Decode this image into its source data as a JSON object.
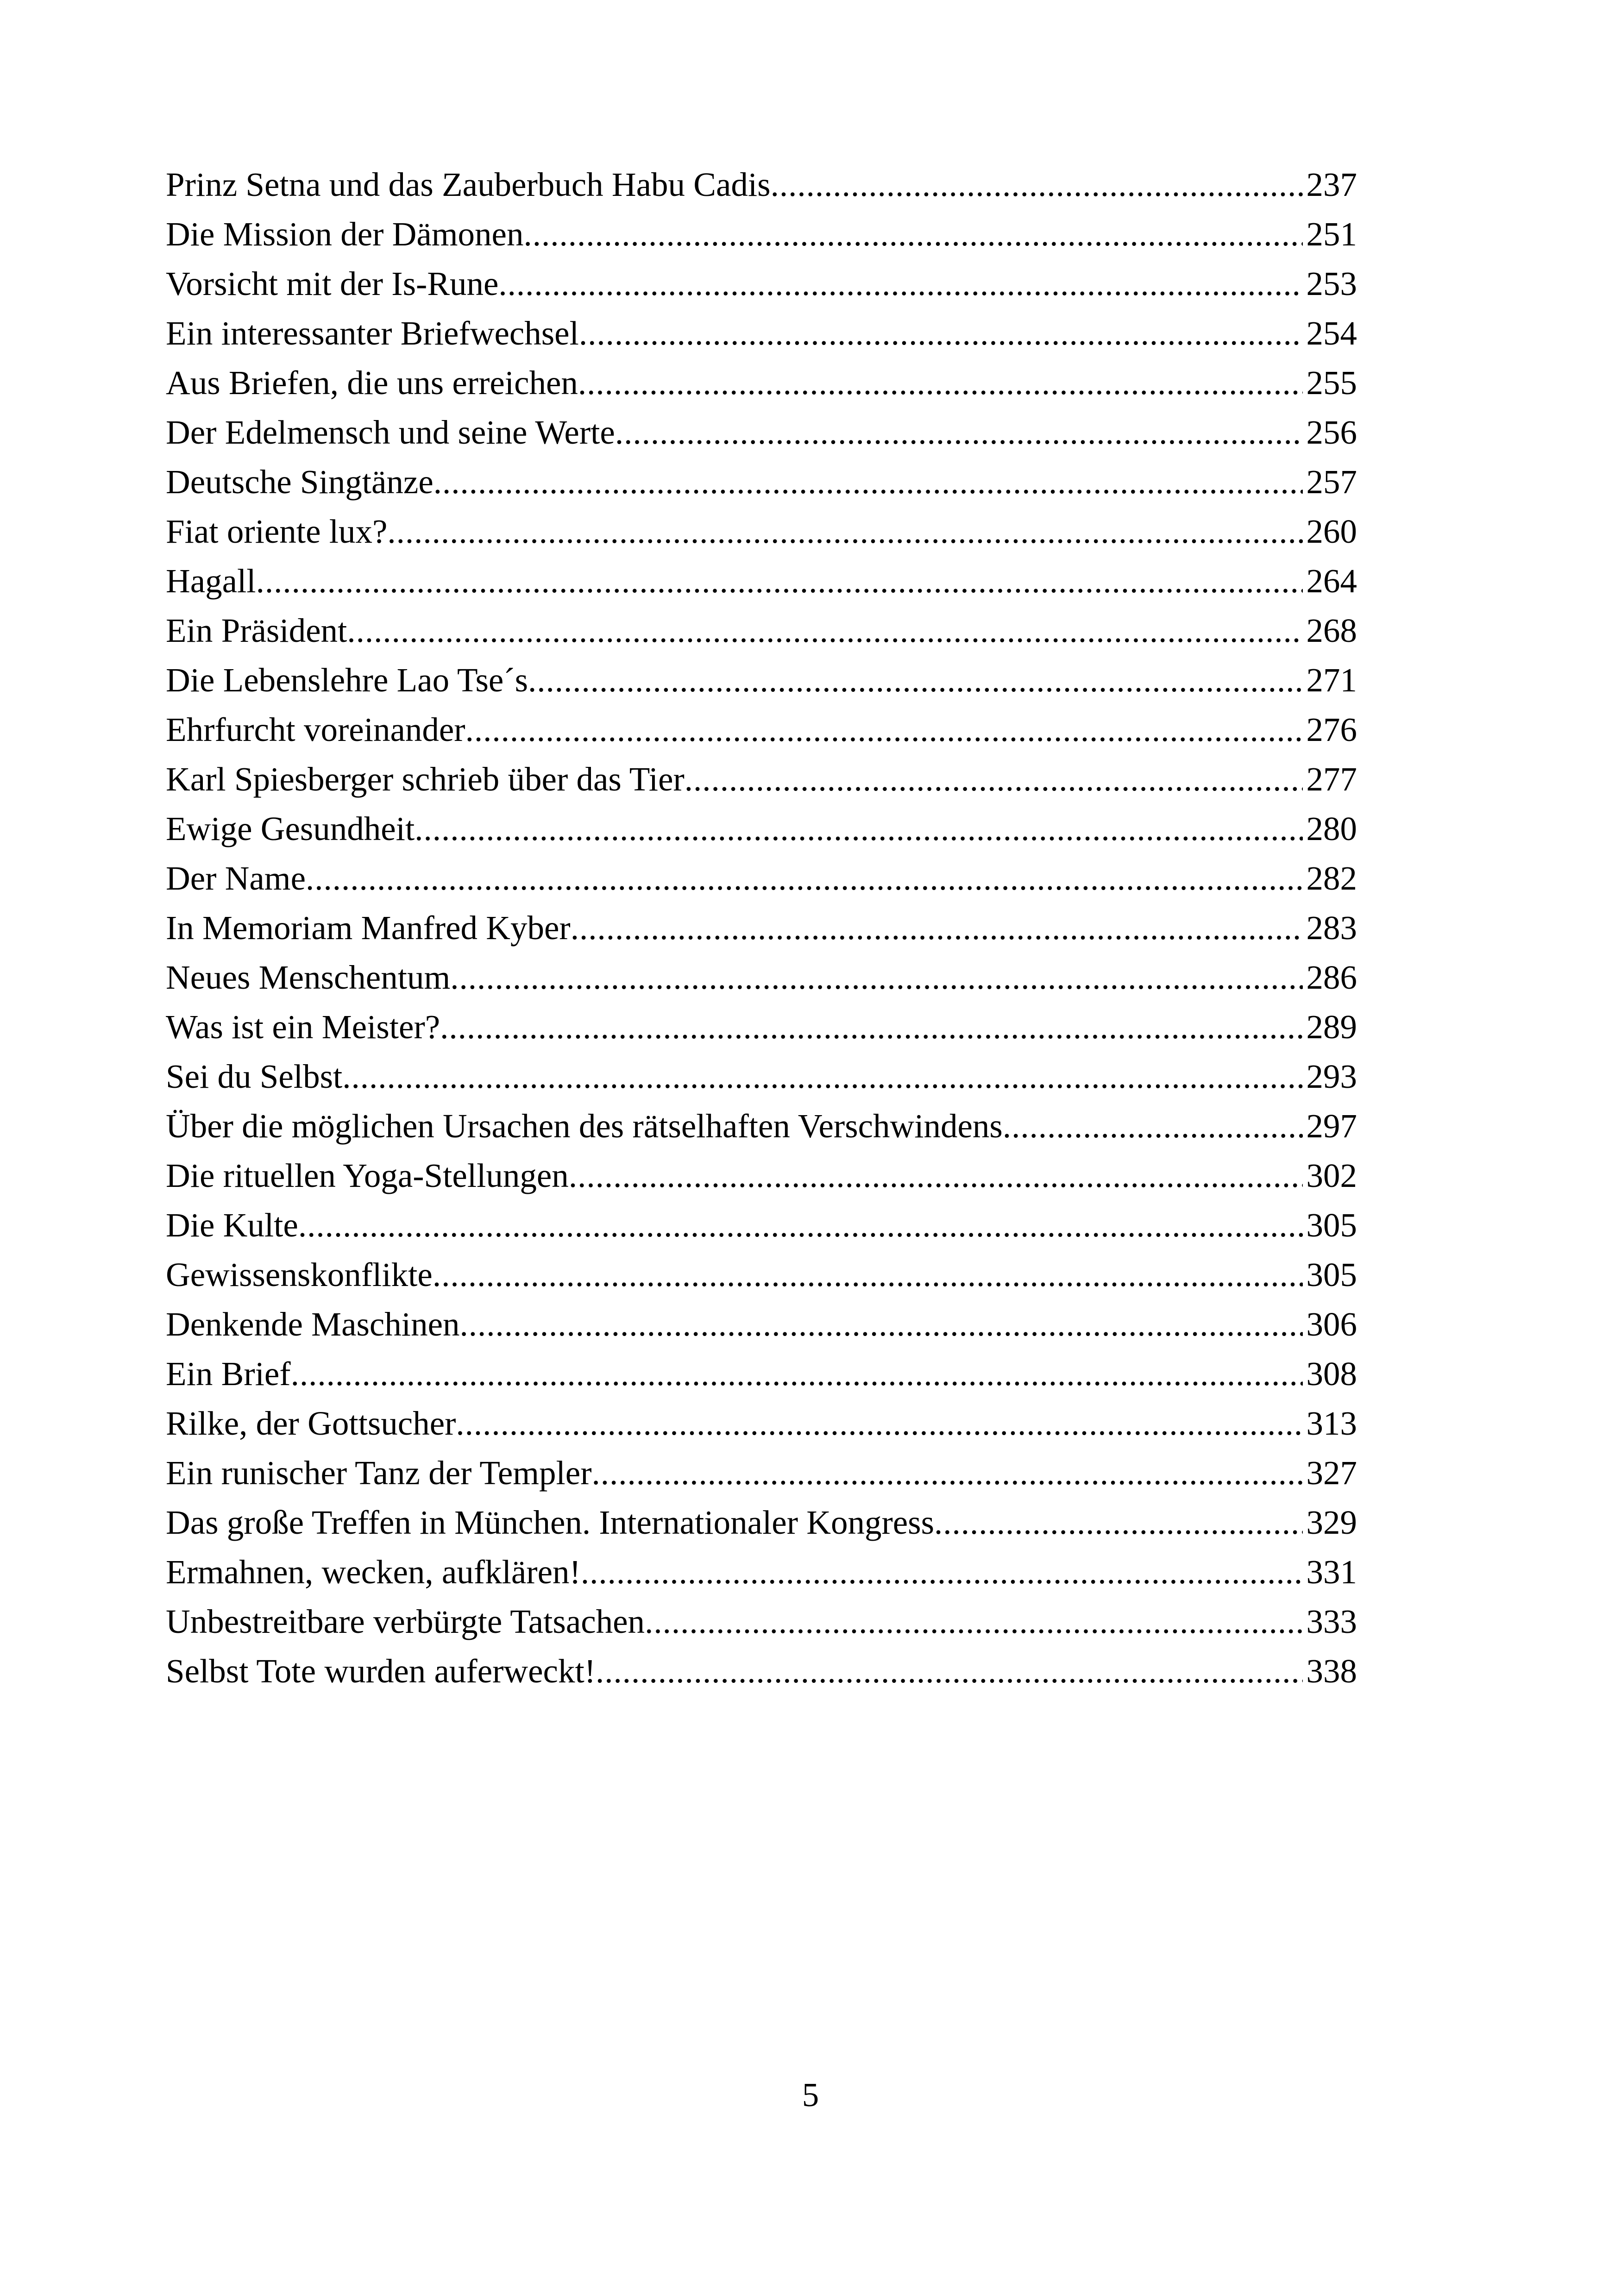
{
  "document": {
    "kind": "table-of-contents-page",
    "page_number": "5",
    "leader_char": ".",
    "text_color": "#000000",
    "background_color": "#ffffff"
  },
  "toc": {
    "entries": [
      {
        "title": "Prinz Setna und das Zauberbuch Habu Cadis",
        "page": "237"
      },
      {
        "title": "Die Mission der Dämonen",
        "page": "251"
      },
      {
        "title": "Vorsicht mit der Is-Rune",
        "page": "253"
      },
      {
        "title": "Ein interessanter Briefwechsel",
        "page": "254"
      },
      {
        "title": "Aus Briefen, die uns erreichen",
        "page": "255"
      },
      {
        "title": "Der Edelmensch und seine Werte",
        "page": "256"
      },
      {
        "title": "Deutsche Singtänze",
        "page": "257"
      },
      {
        "title": "Fiat oriente lux?",
        "page": "260"
      },
      {
        "title": "Hagall",
        "page": "264"
      },
      {
        "title": "Ein Präsident",
        "page": "268"
      },
      {
        "title": "Die Lebenslehre Lao Tse´s",
        "page": "271"
      },
      {
        "title": "Ehrfurcht voreinander",
        "page": "276"
      },
      {
        "title": "Karl Spiesberger schrieb über das Tier",
        "page": "277"
      },
      {
        "title": "Ewige Gesundheit",
        "page": "280"
      },
      {
        "title": "Der Name",
        "page": "282"
      },
      {
        "title": "In Memoriam Manfred Kyber",
        "page": "283"
      },
      {
        "title": "Neues Menschentum",
        "page": "286"
      },
      {
        "title": "Was ist ein Meister?",
        "page": "289"
      },
      {
        "title": "Sei du Selbst",
        "page": "293"
      },
      {
        "title": "Über die möglichen Ursachen des rätselhaften Verschwindens",
        "page": "297"
      },
      {
        "title": "Die rituellen Yoga-Stellungen",
        "page": "302"
      },
      {
        "title": "Die Kulte",
        "page": "305"
      },
      {
        "title": "Gewissenskonflikte",
        "page": "305"
      },
      {
        "title": "Denkende Maschinen",
        "page": "306"
      },
      {
        "title": "Ein Brief",
        "page": "308"
      },
      {
        "title": "Rilke, der Gottsucher",
        "page": "313"
      },
      {
        "title": "Ein runischer Tanz der Templer",
        "page": "327"
      },
      {
        "title": "Das große Treffen in München. Internationaler Kongress",
        "page": "329"
      },
      {
        "title": "Ermahnen, wecken, aufklären!",
        "page": "331"
      },
      {
        "title": "Unbestreitbare verbürgte Tatsachen",
        "page": "333"
      },
      {
        "title": "Selbst Tote wurden auferweckt!",
        "page": "338"
      }
    ]
  }
}
